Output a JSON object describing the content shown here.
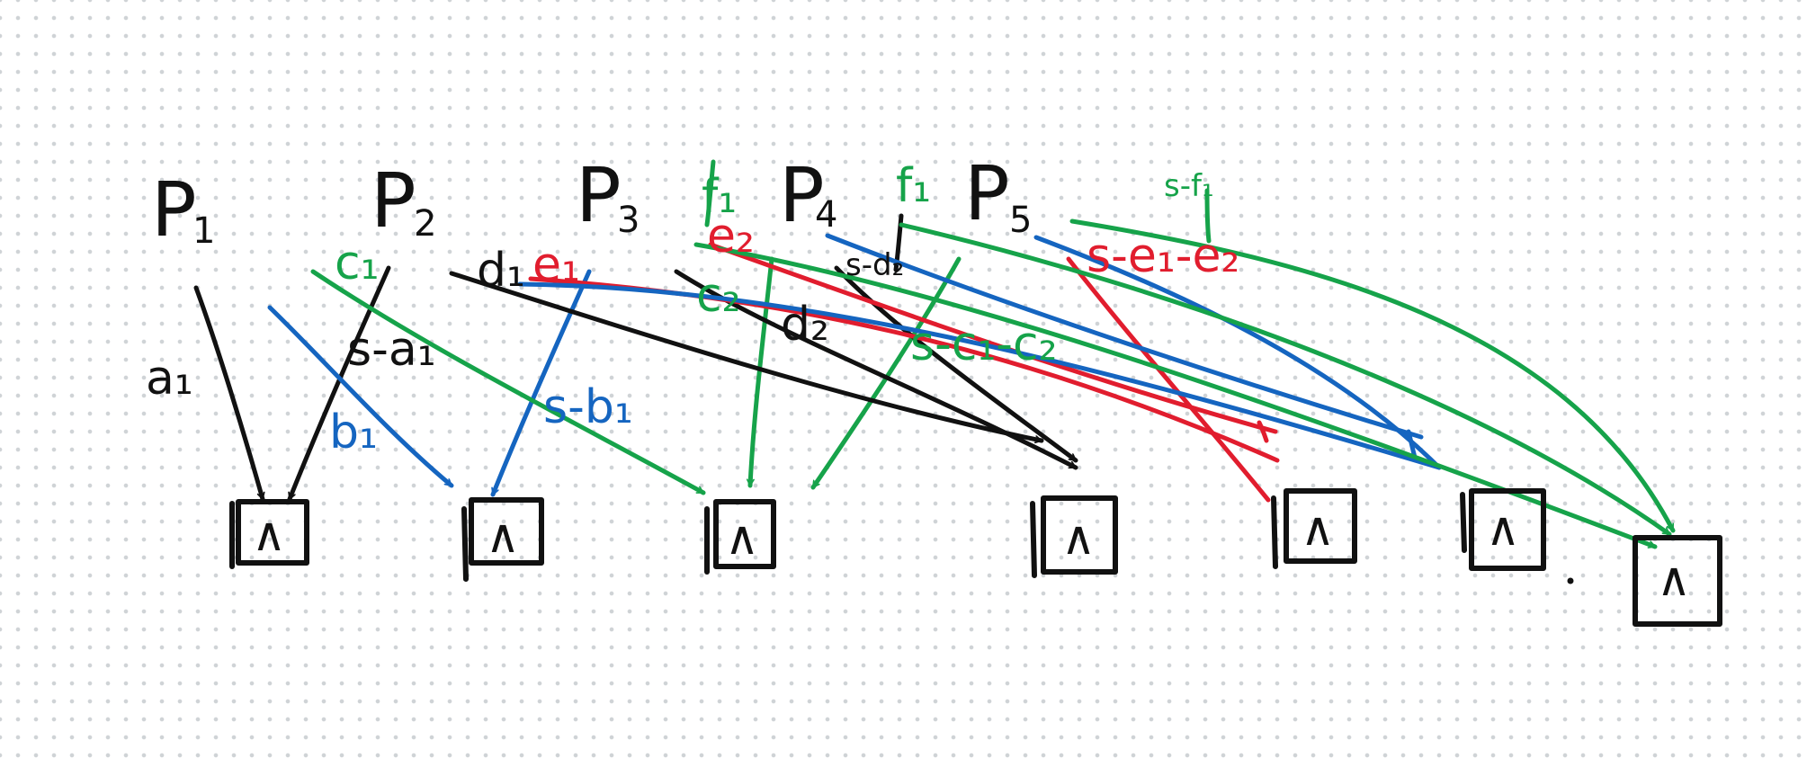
{
  "colors": {
    "black": "#111111",
    "blue": "#1565c0",
    "green": "#16a34a",
    "red": "#e11d2e",
    "dot_grid": "#cfd3d6"
  },
  "players": [
    {
      "letter": "P",
      "sub": "1"
    },
    {
      "letter": "P",
      "sub": "2"
    },
    {
      "letter": "P",
      "sub": "3"
    },
    {
      "letter": "P",
      "sub": "4"
    },
    {
      "letter": "P",
      "sub": "5"
    }
  ],
  "edge_labels": {
    "a1": "a₁",
    "s_a1": "s-a₁",
    "b1": "b₁",
    "s_b1": "s-b₁",
    "c1": "c₁",
    "c2": "c₂",
    "s_c1_c2": "s-c₁-c₂",
    "d1": "d₁",
    "d2": "d₂",
    "s_d2": "s-d₂",
    "e1": "e₁",
    "e2": "e₂",
    "s_e1_e2": "s-e₁-e₂",
    "f1_left": "f₁",
    "f1_right": "f₁",
    "s_f1": "s-f₁"
  },
  "gates": [
    {
      "symbol": "∧"
    },
    {
      "symbol": "∧"
    },
    {
      "symbol": "∧"
    },
    {
      "symbol": "∧"
    },
    {
      "symbol": "∧"
    },
    {
      "symbol": "∧"
    },
    {
      "symbol": "∧"
    }
  ]
}
